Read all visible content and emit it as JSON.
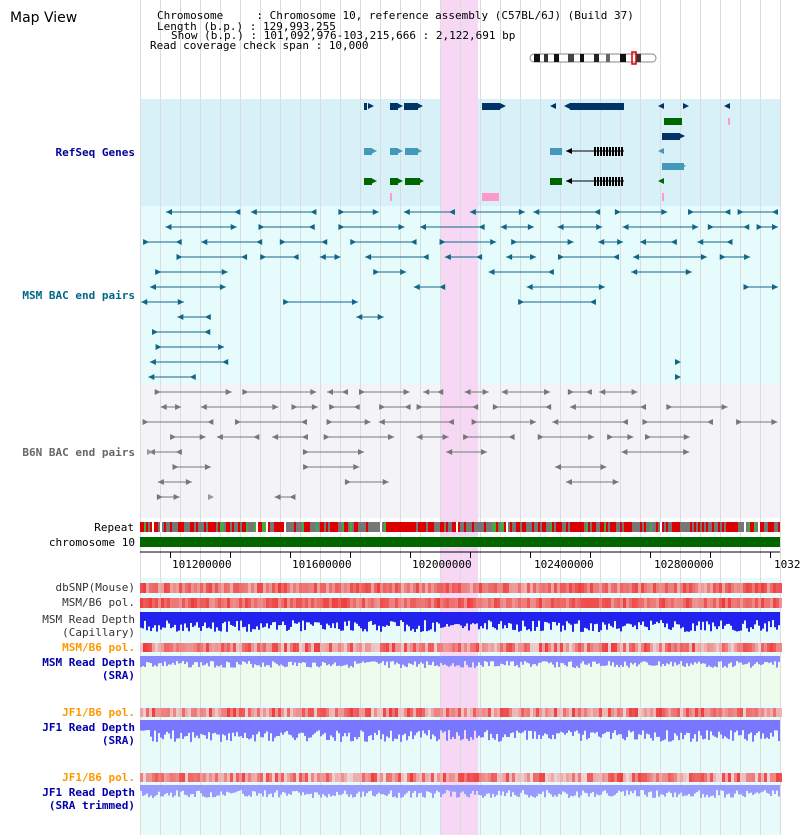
{
  "view_title": "Map View",
  "header": {
    "chromosome_key": "Chromosome     : ",
    "chromosome_value": "Chromosome 10, reference assembly (C57BL/6J) (Build 37)",
    "length_key": "Length (b.p.) : ",
    "length_value": "129,993,255",
    "show_key": "Show (b.p.) : ",
    "show_value": "101,092,976-103,215,666 : 2,122,691 bp",
    "coverage_key": "Read coverage check span : ",
    "coverage_value": "10,000"
  },
  "tracks": {
    "refseq": "RefSeq Genes",
    "msm_bac": "MSM BAC end pairs",
    "b6n_bac": "B6N BAC end pairs",
    "repeat": "Repeat",
    "chromosome": "chromosome 10",
    "dbsnp": "dbSNP(Mouse)",
    "msm_b6_pol": "MSM/B6 pol.",
    "msm_read_depth_cap_1": "MSM Read Depth",
    "msm_read_depth_cap_2": "(Capillary)",
    "msm_b6_pol_sra": "MSM/B6 pol.",
    "msm_read_depth_sra_1": "MSM Read Depth",
    "msm_read_depth_sra_2": "(SRA)",
    "jf1_b6_pol": "JF1/B6 pol.",
    "jf1_read_depth_1": "JF1 Read Depth",
    "jf1_read_depth_2": "(SRA)",
    "jf1_b6_pol_trim": "JF1/B6 pol.",
    "jf1_read_depth_trim_1": "JF1 Read Depth",
    "jf1_read_depth_trim_2": "(SRA trimmed)"
  },
  "axis": {
    "ticks": [
      "101200000",
      "101600000",
      "102000000",
      "102400000",
      "102800000",
      "1032"
    ]
  },
  "colors": {
    "refseq_bg": "#d8f0f8",
    "bac_bg": "#e6fbfb",
    "b6n_bg": "#f4f4f8",
    "highlight": "#f6d8f4",
    "label_blue": "#0000aa",
    "label_orange": "#ff9900",
    "refseq_label": "#000099",
    "msm_label": "#006688",
    "b6n_label": "#666666",
    "chrom_green": "#006600",
    "depth_blue": "#2222ee",
    "depth_light": "#8888ff",
    "pol_red": "#ee3333"
  }
}
